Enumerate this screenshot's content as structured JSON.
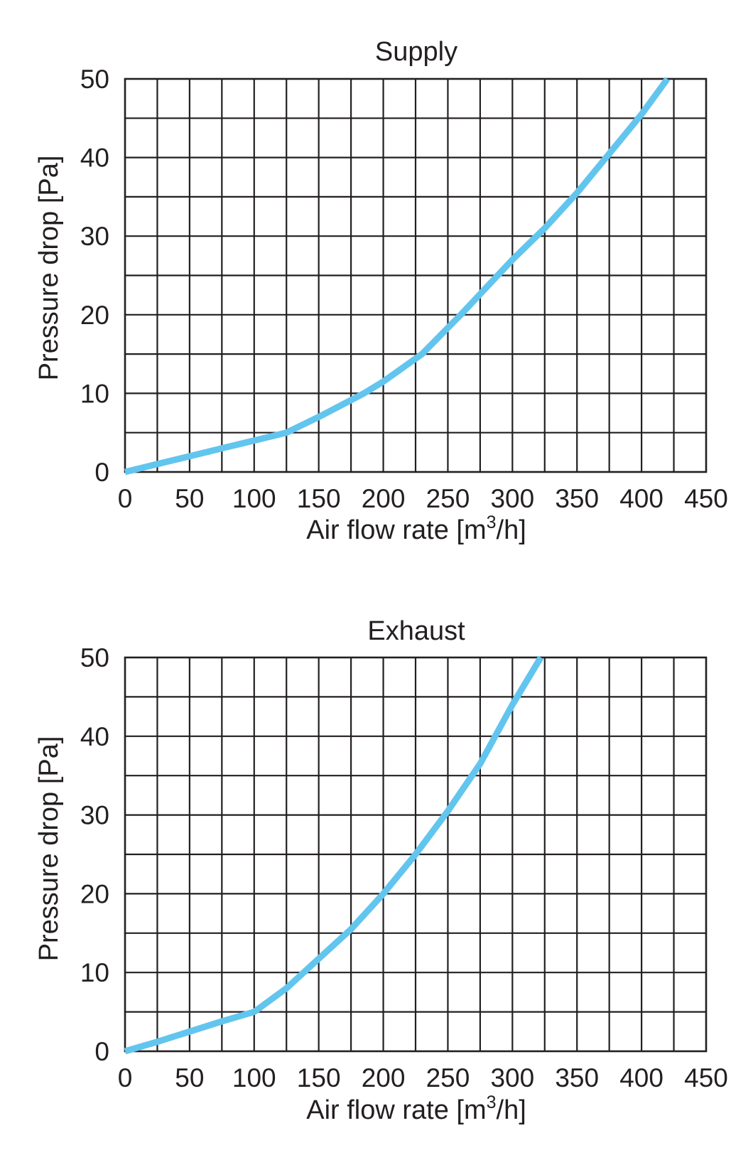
{
  "colors": {
    "curve": "#62c5ee",
    "grid": "#231f20",
    "background": "#ffffff"
  },
  "chart_data": [
    {
      "type": "line",
      "title": "Supply",
      "xlabel": "Air flow rate [m",
      "xlabel_sup": "3",
      "xlabel_suffix": "/h]",
      "ylabel": "Pressure drop [Pa]",
      "xlim": [
        0,
        450
      ],
      "ylim": [
        0,
        50
      ],
      "x_ticks": [
        "0",
        "50",
        "100",
        "150",
        "200",
        "250",
        "300",
        "350",
        "400",
        "450"
      ],
      "y_ticks": [
        "0",
        "10",
        "20",
        "30",
        "40",
        "50"
      ],
      "grid": true,
      "series": [
        {
          "x": [
            0,
            25,
            50,
            75,
            100,
            125,
            150,
            185,
            200,
            230,
            260,
            300,
            325,
            350,
            375,
            400,
            420
          ],
          "y": [
            0,
            1,
            2,
            3,
            4,
            5,
            7,
            10,
            11.5,
            15,
            20,
            27,
            31,
            35.5,
            40.5,
            45.5,
            50
          ]
        }
      ]
    },
    {
      "type": "line",
      "title": "Exhaust",
      "xlabel": "Air flow rate [m",
      "xlabel_sup": "3",
      "xlabel_suffix": "/h]",
      "ylabel": "Pressure drop [Pa]",
      "xlim": [
        0,
        450
      ],
      "ylim": [
        0,
        50
      ],
      "x_ticks": [
        "0",
        "50",
        "100",
        "150",
        "200",
        "250",
        "300",
        "350",
        "400",
        "450"
      ],
      "y_ticks": [
        "0",
        "10",
        "20",
        "30",
        "40",
        "50"
      ],
      "grid": true,
      "series": [
        {
          "x": [
            0,
            25,
            50,
            75,
            100,
            125,
            145,
            175,
            200,
            225,
            250,
            275,
            300,
            322
          ],
          "y": [
            0,
            1.2,
            2.5,
            3.8,
            5,
            8,
            11,
            15.5,
            20,
            25,
            30.5,
            36.5,
            44,
            50
          ]
        }
      ]
    }
  ]
}
